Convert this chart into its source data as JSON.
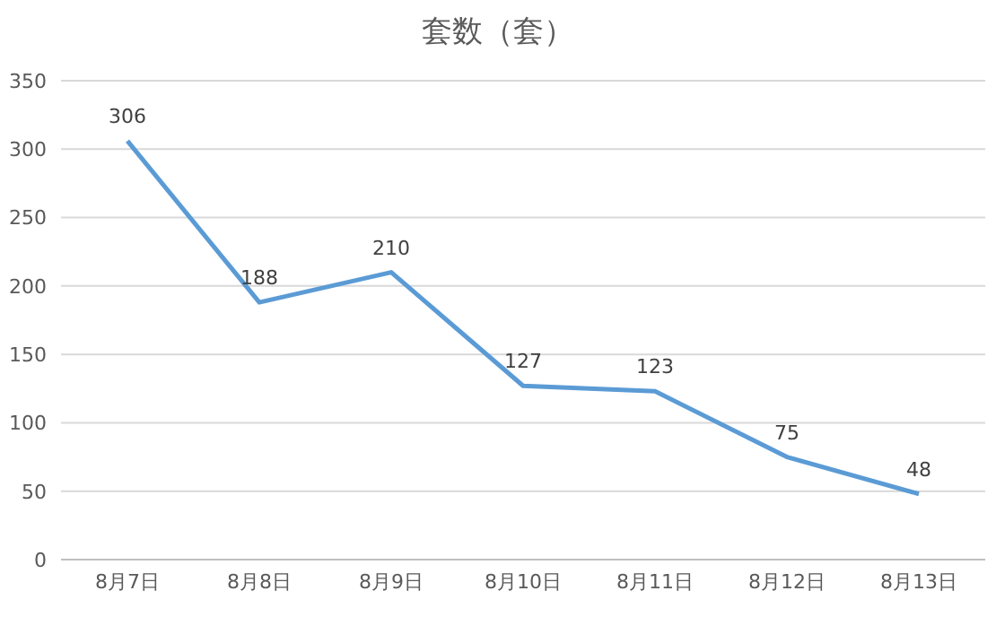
{
  "chart_data": {
    "type": "line",
    "title": "套数（套）",
    "categories": [
      "8月7日",
      "8月8日",
      "8月9日",
      "8月10日",
      "8月11日",
      "8月12日",
      "8月13日"
    ],
    "series": [
      {
        "color": "#5b9bd5",
        "values": [
          306,
          188,
          210,
          127,
          123,
          75,
          48
        ]
      }
    ],
    "ylim": [
      0,
      350
    ],
    "yticks": [
      0,
      50,
      100,
      150,
      200,
      250,
      300,
      350
    ],
    "grid": "y",
    "data_labels": true,
    "marker": "none",
    "line_style": "solid",
    "legend": false
  }
}
